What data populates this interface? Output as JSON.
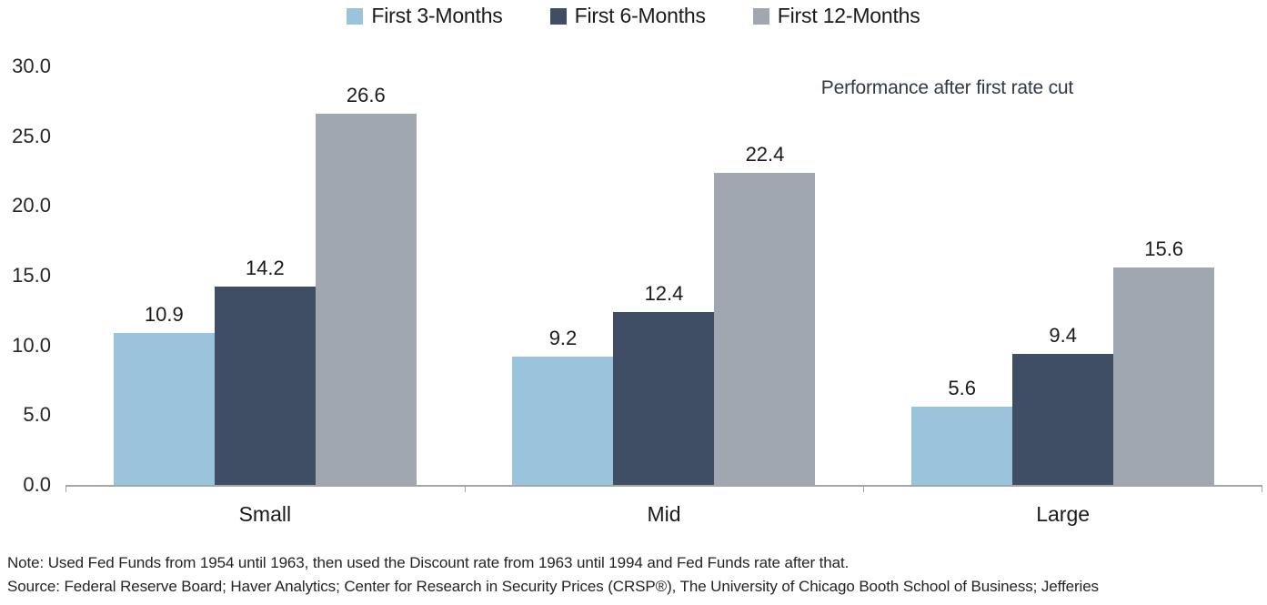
{
  "chart_data": {
    "type": "bar",
    "title": "Performance after first rate cut",
    "categories": [
      "Small",
      "Mid",
      "Large"
    ],
    "series": [
      {
        "name": "First 3-Months",
        "color": "#9ac4db",
        "values": [
          10.9,
          9.2,
          5.6
        ]
      },
      {
        "name": "First 6-Months",
        "color": "#3f4e64",
        "values": [
          14.2,
          12.4,
          9.4
        ]
      },
      {
        "name": "First 12-Months",
        "color": "#a1a7b1",
        "values": [
          26.6,
          22.4,
          15.6
        ]
      }
    ],
    "value_labels_decimals": 1,
    "xlabel": "",
    "ylabel": "",
    "ylim": [
      0,
      30
    ],
    "y_ticks": [
      "30.0",
      "25.0",
      "20.0",
      "15.0",
      "10.0",
      "5.0",
      "0.0"
    ],
    "grid": false,
    "legend_position": "top",
    "axis_color": "#a3a7ab"
  },
  "footnotes": {
    "note": "Note: Used Fed Funds from 1954 until 1963, then used the Discount rate from 1963 until 1994 and Fed Funds rate after that.",
    "source": "Source: Federal Reserve Board; Haver Analytics; Center for Research in Security Prices (CRSP®), The University of Chicago Booth School of Business; Jefferies"
  }
}
